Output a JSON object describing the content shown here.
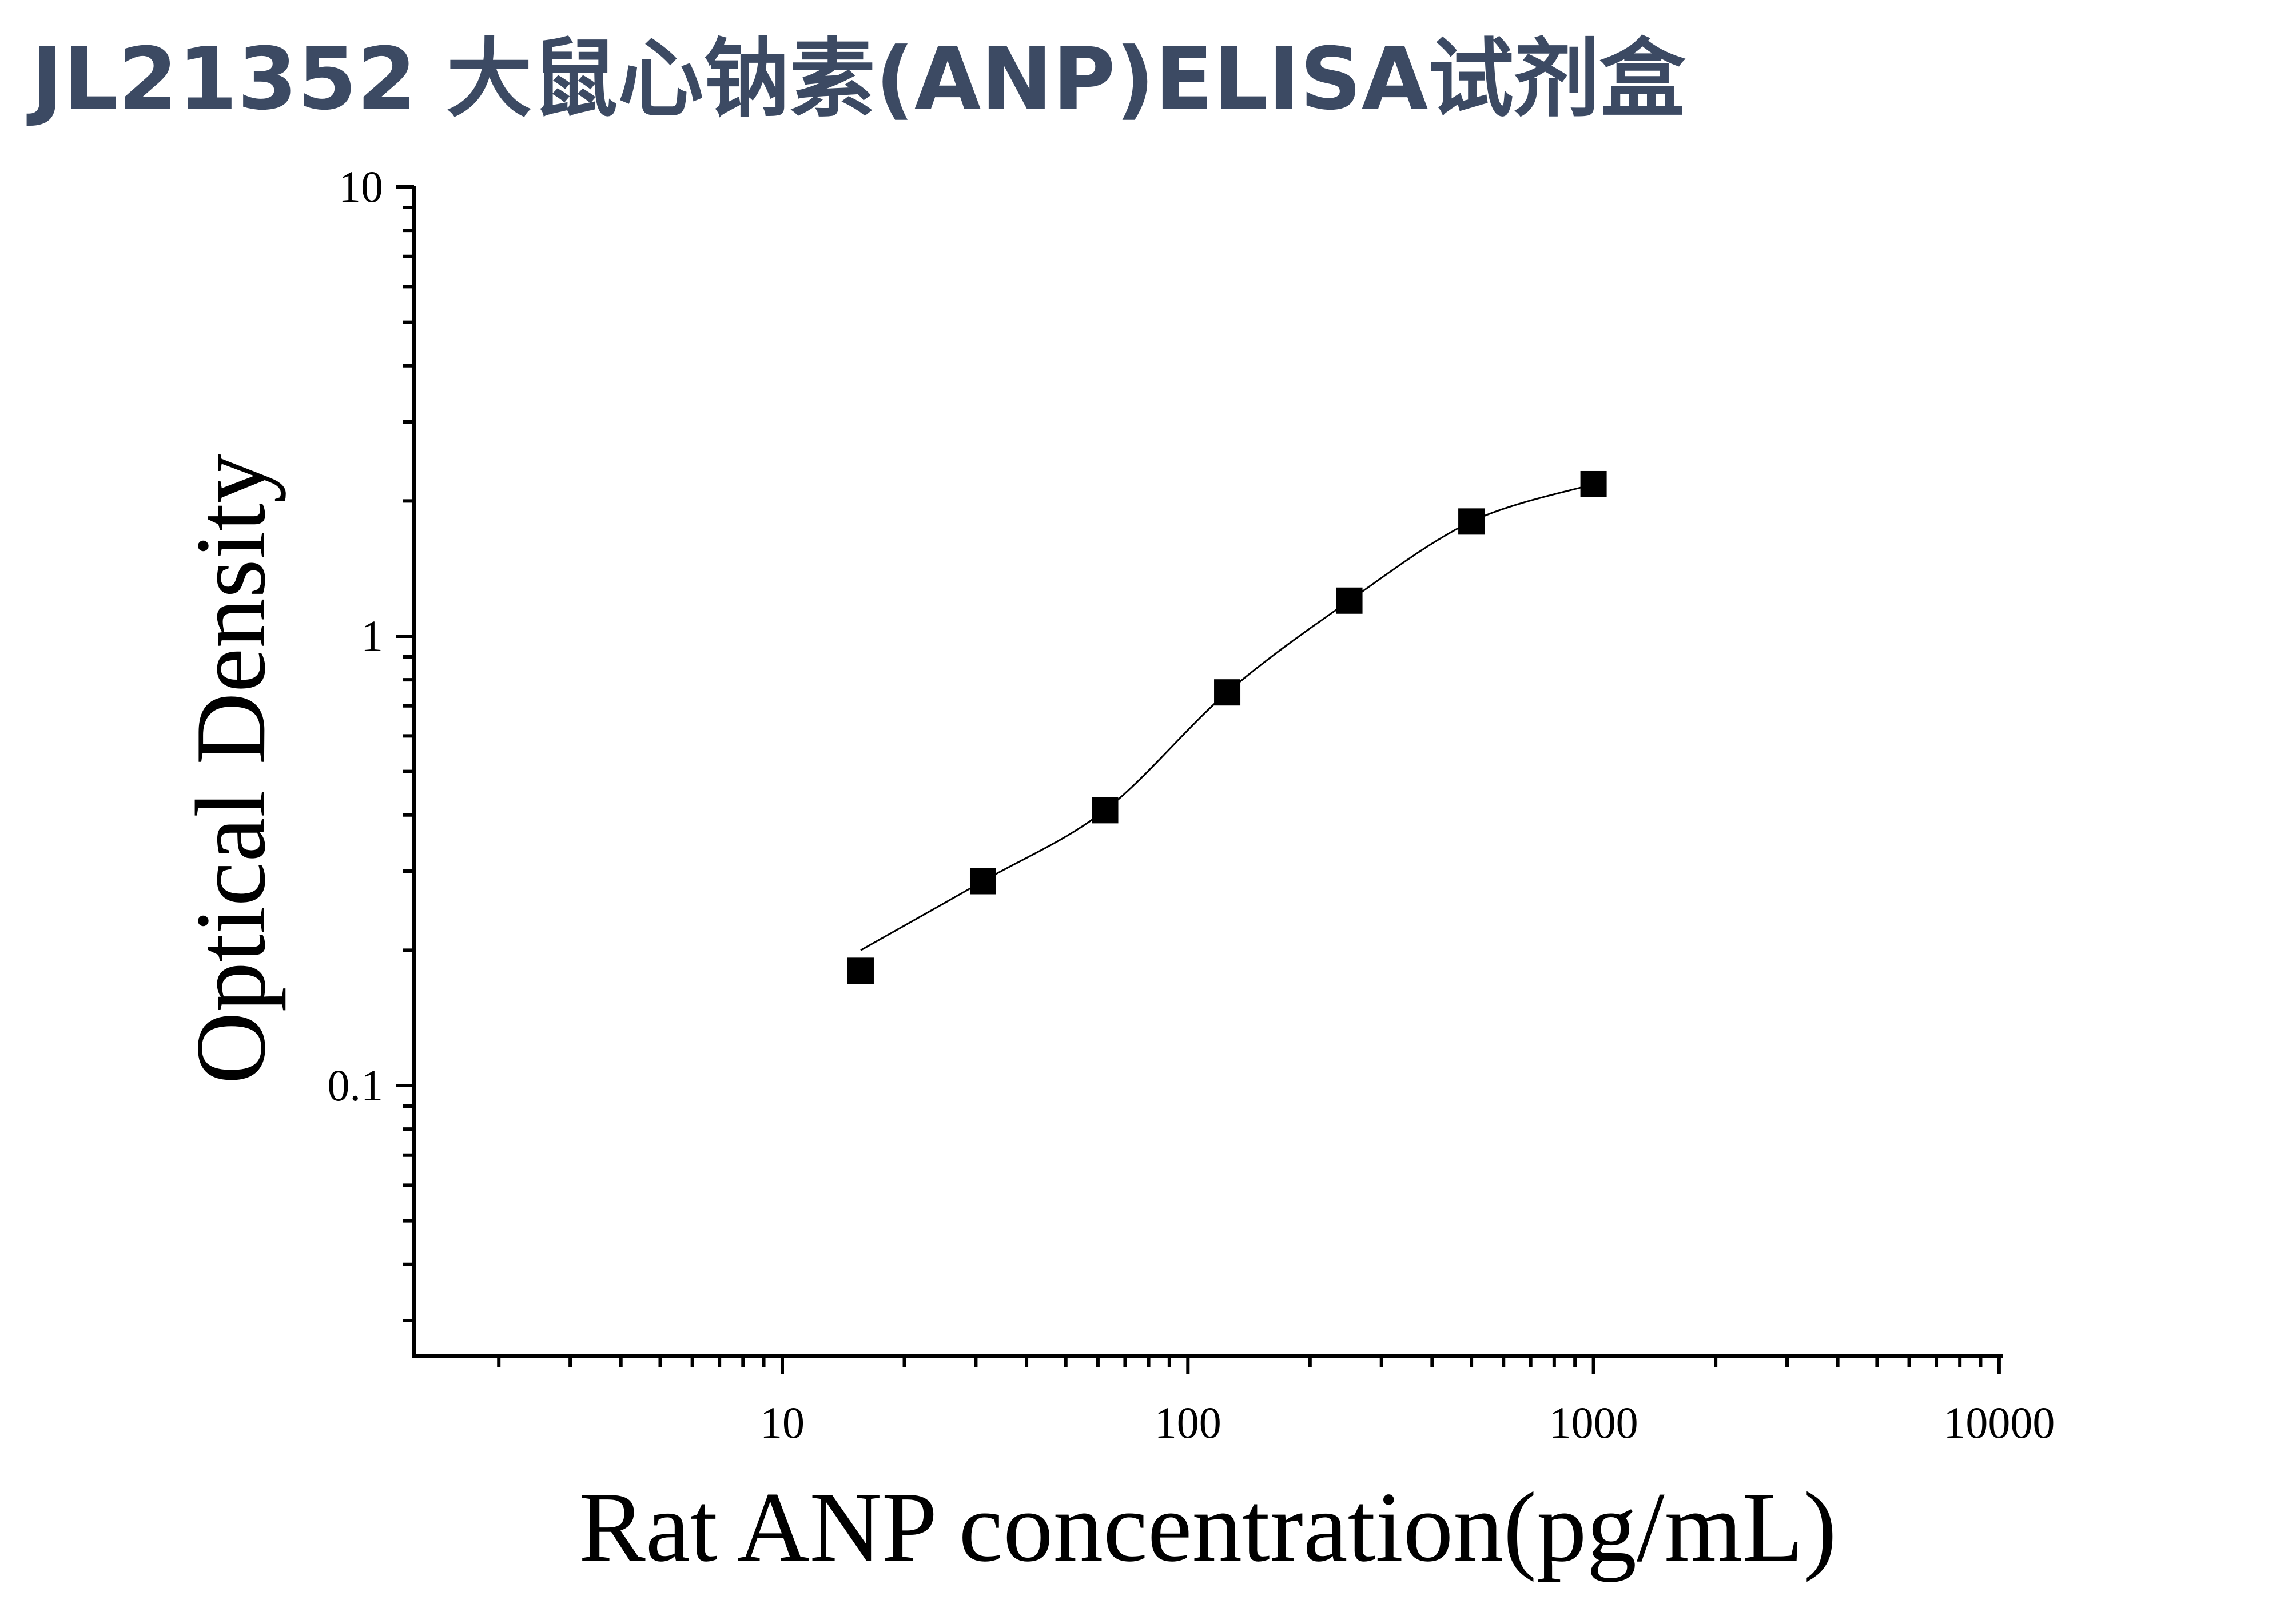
{
  "title": "JL21352 大鼠心钠素(ANP)ELISA试剂盒",
  "chart_data": {
    "type": "scatter",
    "title": "JL21352 大鼠心钠素(ANP)ELISA试剂盒",
    "xlabel": "Rat ANP concentration(pg/mL)",
    "ylabel": "Optical Density",
    "xscale": "log",
    "yscale": "log",
    "xlim": [
      1.3,
      10000
    ],
    "ylim": [
      0.025,
      10
    ],
    "xticks": [
      "10",
      "100",
      "1000",
      "10000"
    ],
    "yticks": [
      "0.1",
      "1",
      "10"
    ],
    "series": [
      {
        "marker": "square",
        "color": "#000000",
        "x": [
          15.6,
          31.25,
          62.5,
          125,
          250,
          500,
          1000
        ],
        "y": [
          0.18,
          0.285,
          0.41,
          0.75,
          1.2,
          1.8,
          2.18
        ]
      }
    ],
    "fit_curve": {
      "type": "4PL",
      "x_range": [
        15.6,
        1000
      ],
      "color": "#000000"
    },
    "grid": false
  }
}
